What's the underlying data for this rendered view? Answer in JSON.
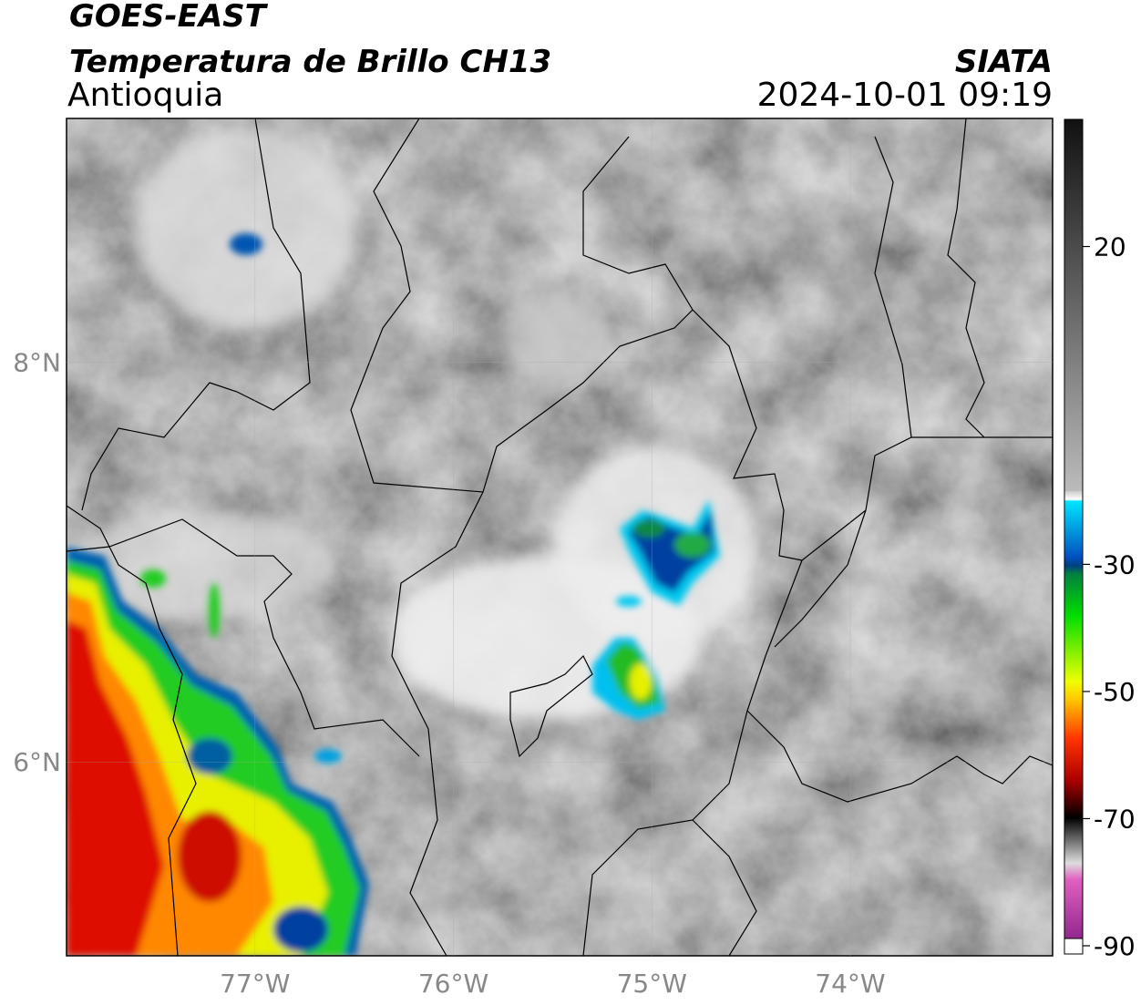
{
  "chart_data": {
    "type": "map",
    "title": "GOES-EAST",
    "subtitle": "Temperatura de Brillo CH13",
    "region": "Antioquia",
    "source": "SIATA",
    "timestamp": "2024-10-01 09:19",
    "xlim": [
      -77.95,
      -72.98
    ],
    "ylim": [
      5.03,
      9.22
    ],
    "xticks": [
      {
        "value": -77,
        "label": "77°W"
      },
      {
        "value": -76,
        "label": "76°W"
      },
      {
        "value": -75,
        "label": "75°W"
      },
      {
        "value": -74,
        "label": "74°W"
      }
    ],
    "yticks": [
      {
        "value": 8,
        "label": "8°N"
      },
      {
        "value": 6,
        "label": "6°N"
      }
    ],
    "colorbar_lim": [
      -90,
      40
    ],
    "colorbar_ticks": [
      20,
      -30,
      -50,
      -70,
      -90
    ]
  }
}
